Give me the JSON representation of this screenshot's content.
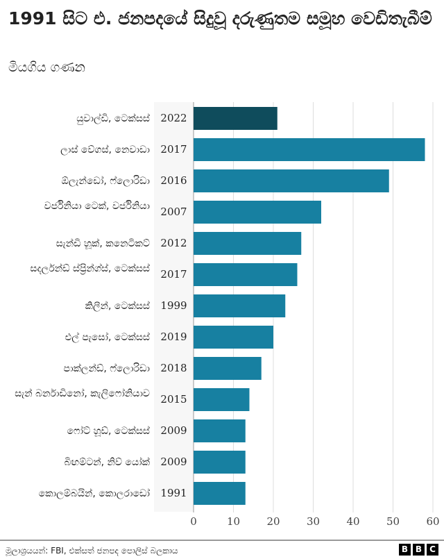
{
  "chart_data": {
    "type": "bar",
    "orientation": "horizontal",
    "title": "1991 සිට එ. ජනපදයේ සිදුවූ දරුණුතම සමූහ වෙඩිතැබීම්",
    "subtitle": "මියගිය ගණන",
    "categories": [
      "යුවාල්ඩි, ටෙක්සස්",
      "ලාස් වේගස්, නෙවාඩා",
      "ඕලැන්ඩෝ, ෆ්ලොරිඩා",
      "වර්ජිනියා ටෙක්, වර්ජිනියා",
      "සැන්ඩි හූක්, කනෙටිකට්",
      "සදර්ලන්ඩ් ස්ප්‍රින්ග්ස්, ටෙක්සස්",
      "කිලීන්, ටෙක්සස්",
      "එල් පැසෝ, ටෙක්සස්",
      "පාක්ලන්ඩ්, ෆ්ලොරිඩා",
      "සැන් බර්නාඩිනෝ, කැලිෆෝනියාව",
      "ෆෝට් හූඩ්, ටෙක්සස්",
      "බිඟම්ටන්, නිව් යෝක්",
      "කොලම්බයින්, කොලරාඩෝ"
    ],
    "years": [
      "2022",
      "2017",
      "2016",
      "2007",
      "2012",
      "2017",
      "1999",
      "2019",
      "2018",
      "2015",
      "2009",
      "2009",
      "1991"
    ],
    "values": [
      21,
      58,
      49,
      32,
      27,
      26,
      23,
      20,
      17,
      14,
      13,
      13,
      13
    ],
    "highlight_index": 0,
    "xlim": [
      0,
      60
    ],
    "xticks": [
      "0",
      "10",
      "20",
      "30",
      "40",
      "50",
      "60"
    ],
    "grid": true,
    "colors": {
      "highlight": "#0f4c5c",
      "bar": "#1780a1",
      "grid": "#dddddd"
    }
  },
  "footer": {
    "source": "මූලාශ්‍රයයන්: FBI, එක්සත් ජනපද පොලිස් බලකාය",
    "logo": [
      "B",
      "B",
      "C"
    ]
  }
}
